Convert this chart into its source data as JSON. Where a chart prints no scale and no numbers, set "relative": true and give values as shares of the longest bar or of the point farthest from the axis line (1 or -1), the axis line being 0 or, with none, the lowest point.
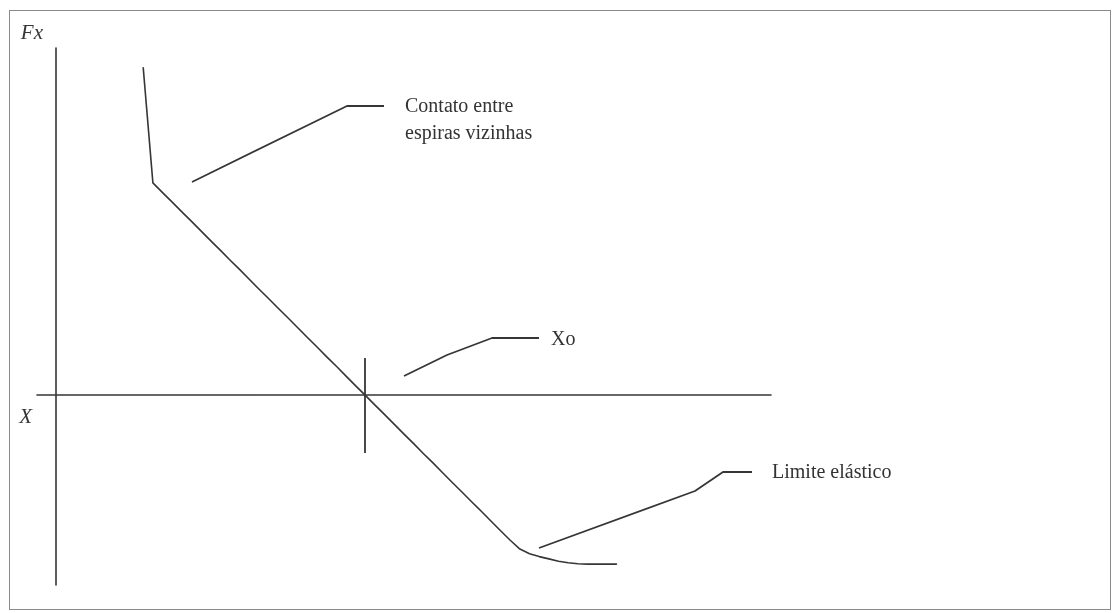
{
  "chart_data": {
    "type": "line",
    "xlabel": "X",
    "ylabel": "Fx",
    "relative": true,
    "categories": [
      null,
      null,
      null,
      null,
      null,
      null,
      null,
      null,
      null,
      null,
      null,
      null,
      null,
      null,
      null,
      null,
      null,
      null,
      null,
      null,
      null,
      null,
      null,
      null,
      null,
      null,
      null,
      null,
      null,
      null,
      null,
      null,
      null,
      null,
      null,
      null,
      null,
      null,
      null,
      null,
      null,
      null,
      null,
      null,
      null,
      null,
      null,
      null,
      null,
      null,
      null,
      null,
      null,
      null,
      null,
      null,
      null,
      null,
      null,
      null,
      null,
      null,
      null,
      null,
      null,
      null,
      null,
      null,
      null,
      null,
      null,
      null,
      null,
      null,
      null,
      null,
      null
    ],
    "values": [
      null,
      null,
      null,
      null,
      null,
      null,
      null,
      null,
      null,
      null,
      null,
      1,
      0.648,
      0.618,
      0.589,
      0.559,
      0.53,
      0.5,
      0.47,
      0.441,
      0.411,
      0.382,
      0.352,
      0.322,
      0.293,
      0.263,
      0.234,
      0.204,
      0.174,
      0.145,
      0.115,
      0.086,
      0.056,
      0.026,
      -0.003,
      -0.033,
      -0.062,
      -0.092,
      -0.122,
      -0.151,
      -0.181,
      -0.21,
      -0.24,
      -0.27,
      -0.299,
      -0.329,
      -0.358,
      -0.388,
      -0.418,
      -0.447,
      -0.474,
      -0.488,
      -0.497,
      -0.504,
      -0.511,
      -0.516,
      -0.519,
      -0.52,
      -0.52,
      -0.52,
      -0.52,
      null,
      null,
      null,
      null,
      null,
      null,
      null,
      null,
      null,
      null,
      null,
      null,
      null,
      null,
      null,
      null
    ],
    "color": "#363636",
    "annotations": [
      "Contato entre espiras vizinhas",
      "Xo",
      "Limite elástico"
    ],
    "marker": "none",
    "line_style": "solid",
    "grid": false
  }
}
